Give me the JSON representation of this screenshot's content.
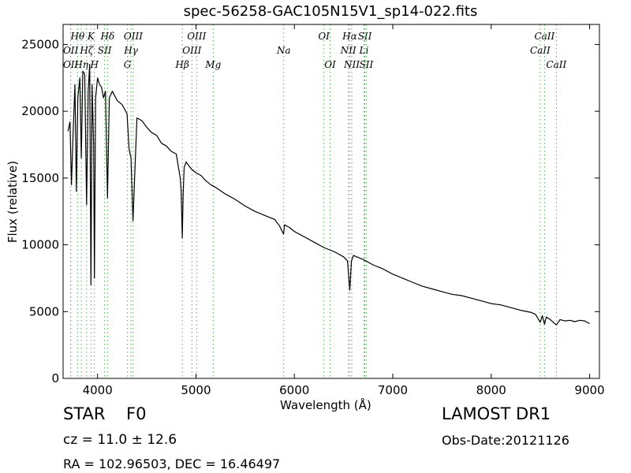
{
  "header": {
    "title": "spec-56258-GAC105N15V1_sp14-022.fits"
  },
  "footer": {
    "object_class": "STAR",
    "object_subclass": "F0",
    "survey": "LAMOST DR1",
    "redshift_text": "cz = 11.0  ± 12.6",
    "obs_date": "Obs-Date:20121126",
    "ra_dec": "RA = 102.96503, DEC = 16.46497"
  },
  "chart_data": {
    "type": "line",
    "title": "spec-56258-GAC105N15V1_sp14-022.fits",
    "xlabel": "Wavelength (Å)",
    "ylabel": "Flux (relative)",
    "xlim": [
      3650,
      9100
    ],
    "ylim": [
      0,
      26500
    ],
    "x_ticks": [
      4000,
      5000,
      6000,
      7000,
      8000,
      9000
    ],
    "y_ticks": [
      0,
      5000,
      10000,
      15000,
      20000,
      25000
    ],
    "grid": false,
    "line_color": "#000000",
    "marker_color": "#4daf4a",
    "series": [
      {
        "x": [
          3700,
          3720,
          3735,
          3750,
          3770,
          3785,
          3800,
          3820,
          3835,
          3850,
          3870,
          3889,
          3905,
          3920,
          3933,
          3945,
          3960,
          3968,
          3980,
          4000,
          4020,
          4040,
          4060,
          4080,
          4101,
          4120,
          4150,
          4200,
          4250,
          4300,
          4320,
          4340,
          4360,
          4400,
          4450,
          4500,
          4550,
          4600,
          4650,
          4700,
          4750,
          4800,
          4840,
          4850,
          4861,
          4870,
          4880,
          4900,
          4950,
          5000,
          5050,
          5100,
          5150,
          5200,
          5300,
          5400,
          5500,
          5600,
          5700,
          5800,
          5850,
          5890,
          5900,
          5950,
          6000,
          6100,
          6200,
          6300,
          6400,
          6450,
          6500,
          6540,
          6563,
          6580,
          6600,
          6700,
          6800,
          6900,
          7000,
          7100,
          7200,
          7300,
          7400,
          7500,
          7600,
          7700,
          7800,
          7900,
          8000,
          8100,
          8200,
          8300,
          8400,
          8450,
          8498,
          8520,
          8542,
          8560,
          8600,
          8662,
          8700,
          8750,
          8800,
          8850,
          8900,
          8950,
          9000
        ],
        "y": [
          18500,
          19200,
          14500,
          18000,
          22000,
          14000,
          21000,
          22500,
          16500,
          23000,
          22800,
          13000,
          21500,
          23500,
          7000,
          22000,
          17500,
          7500,
          21000,
          22500,
          22000,
          21800,
          21000,
          21500,
          13500,
          21000,
          21500,
          20800,
          20500,
          19800,
          17200,
          16500,
          11800,
          19500,
          19300,
          18800,
          18400,
          18200,
          17600,
          17400,
          17000,
          16800,
          15000,
          14000,
          10500,
          13800,
          15800,
          16200,
          15700,
          15400,
          15200,
          14800,
          14500,
          14300,
          13800,
          13400,
          12900,
          12500,
          12200,
          11900,
          11400,
          10800,
          11500,
          11300,
          11000,
          10600,
          10200,
          9800,
          9500,
          9300,
          9100,
          8800,
          6600,
          8800,
          9200,
          8900,
          8500,
          8200,
          7800,
          7500,
          7200,
          6900,
          6700,
          6500,
          6300,
          6200,
          6000,
          5800,
          5600,
          5500,
          5300,
          5100,
          4950,
          4800,
          4200,
          4700,
          4050,
          4600,
          4400,
          4000,
          4400,
          4300,
          4350,
          4250,
          4350,
          4300,
          4100
        ]
      }
    ],
    "spectral_lines": [
      {
        "wave": 3727,
        "name": "OII",
        "row": 1
      },
      {
        "wave": 3727,
        "name": "OII",
        "row": 2
      },
      {
        "wave": 3797,
        "name": "Hθ",
        "row": 0
      },
      {
        "wave": 3835,
        "name": "Hη",
        "row": 2
      },
      {
        "wave": 3889,
        "name": "Hζ",
        "row": 1
      },
      {
        "wave": 3933,
        "name": "K",
        "row": 0
      },
      {
        "wave": 3968,
        "name": "H",
        "row": 2
      },
      {
        "wave": 4072,
        "name": "SII",
        "row": 1
      },
      {
        "wave": 4102,
        "name": "Hδ",
        "row": 0
      },
      {
        "wave": 4304,
        "name": "G",
        "row": 2
      },
      {
        "wave": 4340,
        "name": "Hγ",
        "row": 1
      },
      {
        "wave": 4363,
        "name": "OIII",
        "row": 0
      },
      {
        "wave": 4861,
        "name": "Hβ",
        "row": 2
      },
      {
        "wave": 4959,
        "name": "OIII",
        "row": 1
      },
      {
        "wave": 5007,
        "name": "OIII",
        "row": 0
      },
      {
        "wave": 5175,
        "name": "Mg",
        "row": 2
      },
      {
        "wave": 5892,
        "name": "Na",
        "row": 1
      },
      {
        "wave": 6300,
        "name": "OI",
        "row": 0
      },
      {
        "wave": 6363,
        "name": "OI",
        "row": 2
      },
      {
        "wave": 6548,
        "name": "NII",
        "row": 1
      },
      {
        "wave": 6563,
        "name": "Hα",
        "row": 0
      },
      {
        "wave": 6583,
        "name": "NII",
        "row": 2
      },
      {
        "wave": 6707,
        "name": "Li",
        "row": 1
      },
      {
        "wave": 6716,
        "name": "SII",
        "row": 0
      },
      {
        "wave": 6731,
        "name": "SII",
        "row": 2
      },
      {
        "wave": 8498,
        "name": "CaII",
        "row": 1
      },
      {
        "wave": 8542,
        "name": "CaII",
        "row": 0
      },
      {
        "wave": 8662,
        "name": "CaII",
        "row": 2
      }
    ]
  }
}
